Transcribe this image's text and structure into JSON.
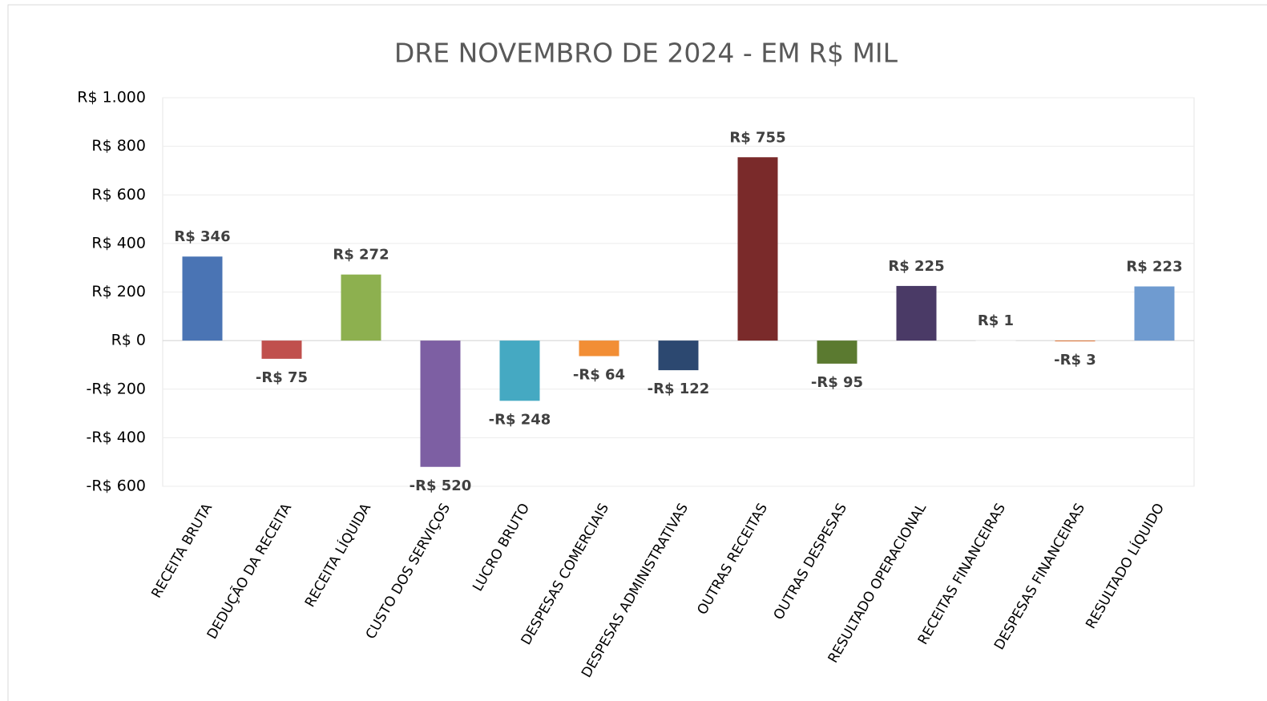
{
  "chart_data": {
    "type": "bar",
    "title": "DRE NOVEMBRO DE 2024 - EM R$ MIL",
    "categories": [
      "RECEITA BRUTA",
      "DEDUÇÃO DA RECEITA",
      "RECEITA LÍQUIDA",
      "CUSTO DOS SERVIÇOS",
      "LUCRO BRUTO",
      "DESPESAS COMERCIAIS",
      "DESPESAS ADMINISTRATIVAS",
      "OUTRAS RECEITAS",
      "OUTRAS DESPESAS",
      "RESULTADO OPERACIONAL",
      "RECEITAS FINANCEIRAS",
      "DESPESAS FINANCEIRAS",
      "RESULTADO LÍQUIDO"
    ],
    "values": [
      346,
      -75,
      272,
      -520,
      -248,
      -64,
      -122,
      755,
      -95,
      225,
      1,
      -3,
      223
    ],
    "value_labels": [
      "R$ 346",
      "-R$ 75",
      "R$ 272",
      "-R$ 520",
      "-R$ 248",
      "-R$ 64",
      "-R$ 122",
      "R$ 755",
      "-R$ 95",
      "R$ 225",
      "R$ 1",
      "-R$ 3",
      "R$ 223"
    ],
    "colors": [
      "#4a74b4",
      "#c0504d",
      "#8db04f",
      "#7d5fa3",
      "#45a9c2",
      "#f28e35",
      "#2c4870",
      "#7a2a2a",
      "#5b7a30",
      "#4a3a66",
      "#f2f2f2",
      "#e07030",
      "#6f9bd0"
    ],
    "ylim": [
      -600,
      1000
    ],
    "yticks": [
      {
        "value": -600,
        "label": "-R$ 600"
      },
      {
        "value": -400,
        "label": "-R$ 400"
      },
      {
        "value": -200,
        "label": "-R$ 200"
      },
      {
        "value": 0,
        "label": "R$ 0"
      },
      {
        "value": 200,
        "label": "R$ 200"
      },
      {
        "value": 400,
        "label": "R$ 400"
      },
      {
        "value": 600,
        "label": "R$ 600"
      },
      {
        "value": 800,
        "label": "R$ 800"
      },
      {
        "value": 1000,
        "label": "R$ 1.000"
      }
    ],
    "grid": true
  }
}
